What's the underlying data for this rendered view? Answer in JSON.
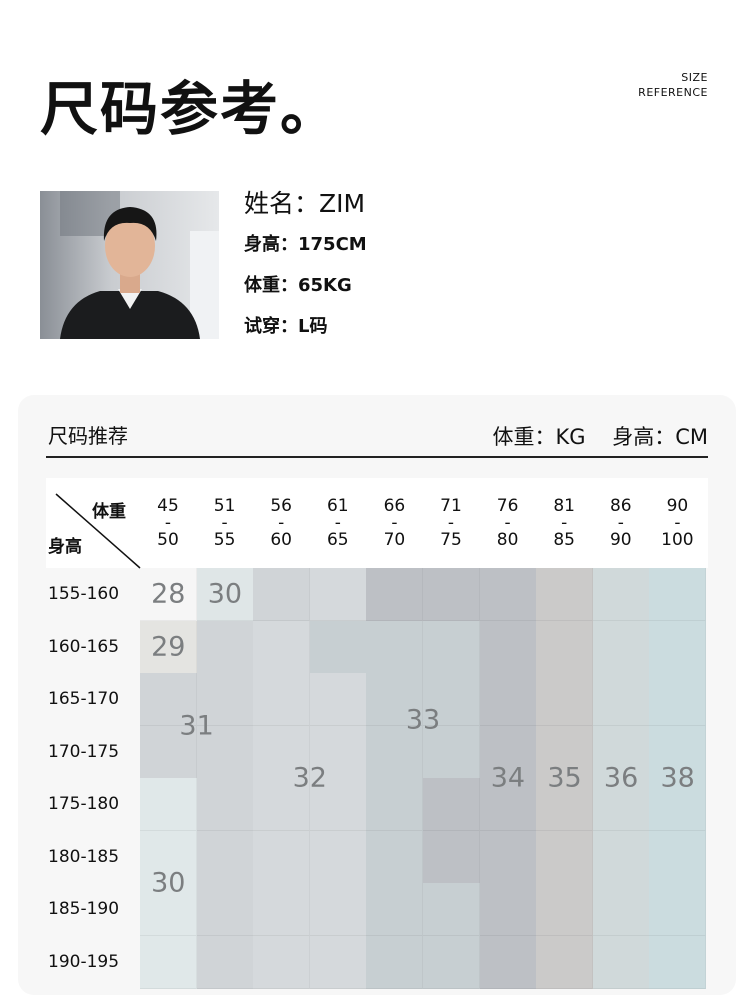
{
  "title": "尺码参考。",
  "subtitle": [
    "SIZE",
    "REFERENCE"
  ],
  "model": {
    "name": "姓名：ZIM",
    "height": "身高：175CM",
    "weight": "体重：65KG",
    "size": "试穿：L码"
  },
  "table": {
    "title": "尺码推荐",
    "units": "体重：KG 身高：CM",
    "corner_weight": "体重",
    "corner_height": "身高",
    "weight_cols": [
      [
        "45",
        "50"
      ],
      [
        "51",
        "55"
      ],
      [
        "56",
        "60"
      ],
      [
        "61",
        "65"
      ],
      [
        "66",
        "70"
      ],
      [
        "71",
        "75"
      ],
      [
        "76",
        "80"
      ],
      [
        "81",
        "85"
      ],
      [
        "86",
        "90"
      ],
      [
        "90",
        "100"
      ]
    ],
    "height_rows": [
      "155-160",
      "160-165",
      "165-170",
      "170-175",
      "175-180",
      "180-185",
      "185-190",
      "190-195"
    ],
    "colors": {
      "A": "#f6f6f6",
      "B": "#dfe6e7",
      "C": "#d0d4d7",
      "D": "#d5d9dc",
      "E": "#bdc0c5",
      "F": "#c7cfd2",
      "G": "#cbcac9",
      "H": "#d0d9da",
      "I": "#cbdcdf",
      "J": "#e4e4e1",
      "K": "#e0e8e9"
    },
    "color_grid": [
      "ABCDEEEGHI",
      "JCDFFFEGHI",
      "CCDDFFEGHI",
      "CCDDFFEGHI",
      "KCDDFEEGHI",
      "KCDDFEEGHI",
      "KCDDFFEGHI",
      "KCDDFFEGHI"
    ],
    "sizes": [
      "28",
      "30",
      "29",
      "31",
      "33",
      "32",
      "34",
      "35",
      "36",
      "38",
      "30"
    ]
  }
}
